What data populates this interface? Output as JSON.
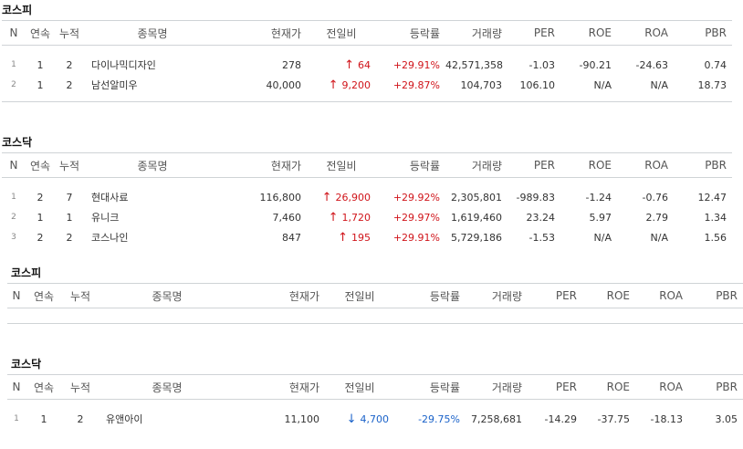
{
  "columns": [
    "N",
    "연속",
    "누적",
    "종목명",
    "현재가",
    "전일비",
    "등락률",
    "거래량",
    "PER",
    "ROE",
    "ROA",
    "PBR"
  ],
  "sections": [
    {
      "title": "코스피",
      "rows": [
        {
          "n": "1",
          "streak": "1",
          "cum": "2",
          "name": "다이나믹디자인",
          "price": "278",
          "diff": "64",
          "dir": "up",
          "rate": "+29.91%",
          "volume": "42,571,358",
          "per": "-1.03",
          "roe": "-90.21",
          "roa": "-24.63",
          "pbr": "0.74"
        },
        {
          "n": "2",
          "streak": "1",
          "cum": "2",
          "name": "남선알미우",
          "price": "40,000",
          "diff": "9,200",
          "dir": "up",
          "rate": "+29.87%",
          "volume": "104,703",
          "per": "106.10",
          "roe": "N/A",
          "roa": "N/A",
          "pbr": "18.73"
        }
      ]
    },
    {
      "title": "코스닥",
      "rows": [
        {
          "n": "1",
          "streak": "2",
          "cum": "7",
          "name": "현대사료",
          "price": "116,800",
          "diff": "26,900",
          "dir": "up",
          "rate": "+29.92%",
          "volume": "2,305,801",
          "per": "-989.83",
          "roe": "-1.24",
          "roa": "-0.76",
          "pbr": "12.47"
        },
        {
          "n": "2",
          "streak": "1",
          "cum": "1",
          "name": "유니크",
          "price": "7,460",
          "diff": "1,720",
          "dir": "up",
          "rate": "+29.97%",
          "volume": "1,619,460",
          "per": "23.24",
          "roe": "5.97",
          "roa": "2.79",
          "pbr": "1.34"
        },
        {
          "n": "3",
          "streak": "2",
          "cum": "2",
          "name": "코스나인",
          "price": "847",
          "diff": "195",
          "dir": "up",
          "rate": "+29.91%",
          "volume": "5,729,186",
          "per": "-1.53",
          "roe": "N/A",
          "roa": "N/A",
          "pbr": "1.56"
        }
      ]
    },
    {
      "title": "코스피",
      "rows": []
    },
    {
      "title": "코스닥",
      "rows": [
        {
          "n": "1",
          "streak": "1",
          "cum": "2",
          "name": "유앤아이",
          "price": "11,100",
          "diff": "4,700",
          "dir": "down",
          "rate": "-29.75%",
          "volume": "7,258,681",
          "per": "-14.29",
          "roe": "-37.75",
          "roa": "-18.13",
          "pbr": "3.05"
        }
      ]
    }
  ]
}
